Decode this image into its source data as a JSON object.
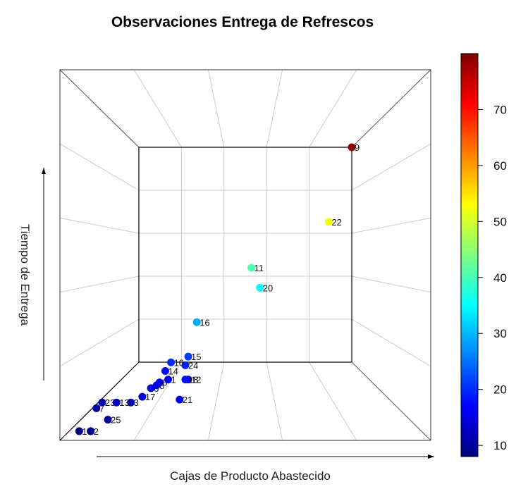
{
  "chart_data": {
    "type": "scatter",
    "title": "Observaciones Entrega de Refrescos",
    "xlabel": "Cajas de Producto Abastecido",
    "ylabel": "Tiempo de Entrega",
    "colorbar": {
      "ticks": [
        10,
        20,
        30,
        40,
        50,
        60,
        70
      ],
      "range": [
        8,
        80
      ],
      "palette": "jet"
    },
    "grid": true,
    "points": [
      {
        "label": "9",
        "x": 5.0,
        "y": 5.0,
        "value": 79
      },
      {
        "label": "22",
        "x": 4.6,
        "y": 3.7,
        "value": 52
      },
      {
        "label": "11",
        "x": 3.25,
        "y": 2.9,
        "value": 40.5
      },
      {
        "label": "20",
        "x": 3.4,
        "y": 2.55,
        "value": 35
      },
      {
        "label": "16",
        "x": 2.3,
        "y": 1.95,
        "value": 29
      },
      {
        "label": "15",
        "x": 2.15,
        "y": 1.35,
        "value": 21
      },
      {
        "label": "10",
        "x": 1.85,
        "y": 1.25,
        "value": 20
      },
      {
        "label": "24",
        "x": 2.1,
        "y": 1.2,
        "value": 19
      },
      {
        "label": "14",
        "x": 1.75,
        "y": 1.1,
        "value": 18
      },
      {
        "label": "18",
        "x": 2.1,
        "y": 0.95,
        "value": 18
      },
      {
        "label": "12",
        "x": 2.15,
        "y": 0.95,
        "value": 17
      },
      {
        "label": "1",
        "x": 1.8,
        "y": 0.95,
        "value": 17
      },
      {
        "label": "5",
        "x": 1.65,
        "y": 0.9,
        "value": 16
      },
      {
        "label": "8",
        "x": 1.6,
        "y": 0.85,
        "value": 16
      },
      {
        "label": "6",
        "x": 1.5,
        "y": 0.8,
        "value": 15
      },
      {
        "label": "21",
        "x": 2.0,
        "y": 0.6,
        "value": 16
      },
      {
        "label": "17",
        "x": 1.35,
        "y": 0.65,
        "value": 14
      },
      {
        "label": "3",
        "x": 1.15,
        "y": 0.55,
        "value": 12
      },
      {
        "label": "13",
        "x": 0.9,
        "y": 0.55,
        "value": 12
      },
      {
        "label": "23",
        "x": 0.65,
        "y": 0.55,
        "value": 11
      },
      {
        "label": "7",
        "x": 0.55,
        "y": 0.45,
        "value": 10
      },
      {
        "label": "25",
        "x": 0.75,
        "y": 0.25,
        "value": 10
      },
      {
        "label": "2",
        "x": 0.45,
        "y": 0.05,
        "value": 9
      },
      {
        "label": "19",
        "x": 0.25,
        "y": 0.05,
        "value": 8
      }
    ]
  }
}
